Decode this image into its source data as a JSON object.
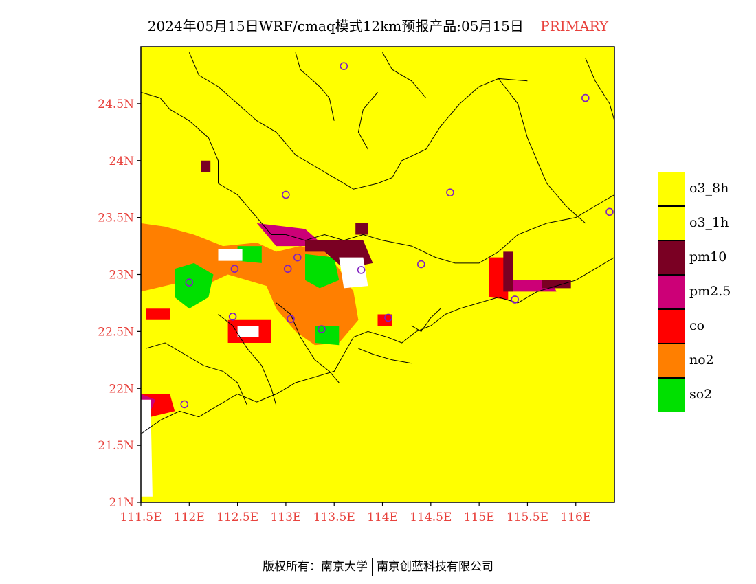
{
  "header": {
    "title": "2024年05月15日WRF/cmaq模式12km预报产品:05月15日",
    "tag": "PRIMARY"
  },
  "map": {
    "lat_ticks": [
      {
        "value": 24.5,
        "label": "24.5N"
      },
      {
        "value": 24.0,
        "label": "24N"
      },
      {
        "value": 23.5,
        "label": "23.5N"
      },
      {
        "value": 23.0,
        "label": "23N"
      },
      {
        "value": 22.5,
        "label": "22.5N"
      },
      {
        "value": 22.0,
        "label": "22N"
      },
      {
        "value": 21.5,
        "label": "21.5N"
      },
      {
        "value": 21.0,
        "label": "21N"
      }
    ],
    "lon_ticks": [
      {
        "value": 111.5,
        "label": "111.5E"
      },
      {
        "value": 112.0,
        "label": "112E"
      },
      {
        "value": 112.5,
        "label": "112.5E"
      },
      {
        "value": 113.0,
        "label": "113E"
      },
      {
        "value": 113.5,
        "label": "113.5E"
      },
      {
        "value": 114.0,
        "label": "114E"
      },
      {
        "value": 114.5,
        "label": "114.5E"
      },
      {
        "value": 115.0,
        "label": "115E"
      },
      {
        "value": 115.5,
        "label": "115.5E"
      },
      {
        "value": 116.0,
        "label": "116E"
      }
    ],
    "extent": {
      "lon_min": 111.5,
      "lon_max": 116.4,
      "lat_min": 21.0,
      "lat_max": 25.0
    },
    "background_pollutant": "o3_8h",
    "city_markers": [
      {
        "lon": 113.6,
        "lat": 24.83
      },
      {
        "lon": 116.1,
        "lat": 24.55
      },
      {
        "lon": 113.0,
        "lat": 23.7
      },
      {
        "lon": 114.7,
        "lat": 23.72
      },
      {
        "lon": 116.35,
        "lat": 23.55
      },
      {
        "lon": 112.47,
        "lat": 23.05
      },
      {
        "lon": 113.02,
        "lat": 23.05
      },
      {
        "lon": 113.12,
        "lat": 23.15
      },
      {
        "lon": 113.78,
        "lat": 23.04
      },
      {
        "lon": 114.4,
        "lat": 23.09
      },
      {
        "lon": 112.0,
        "lat": 22.93
      },
      {
        "lon": 113.05,
        "lat": 22.61
      },
      {
        "lon": 113.37,
        "lat": 22.52
      },
      {
        "lon": 114.06,
        "lat": 22.62
      },
      {
        "lon": 115.37,
        "lat": 22.78
      },
      {
        "lon": 111.95,
        "lat": 21.86
      },
      {
        "lon": 112.45,
        "lat": 22.63
      }
    ],
    "regions": [
      {
        "pollutant": "no2",
        "polygon": [
          [
            111.5,
            23.45
          ],
          [
            111.75,
            23.42
          ],
          [
            112.05,
            23.35
          ],
          [
            112.35,
            23.25
          ],
          [
            112.7,
            23.28
          ],
          [
            112.9,
            23.2
          ],
          [
            113.15,
            23.25
          ],
          [
            113.4,
            23.2
          ],
          [
            113.55,
            23.05
          ],
          [
            113.7,
            22.85
          ],
          [
            113.75,
            22.6
          ],
          [
            113.55,
            22.4
          ],
          [
            113.3,
            22.38
          ],
          [
            113.1,
            22.5
          ],
          [
            112.9,
            22.7
          ],
          [
            112.8,
            22.9
          ],
          [
            112.6,
            22.95
          ],
          [
            112.4,
            23.0
          ],
          [
            112.2,
            22.92
          ],
          [
            112.0,
            22.95
          ],
          [
            111.75,
            22.9
          ],
          [
            111.5,
            22.85
          ]
        ]
      },
      {
        "pollutant": "so2",
        "polygon": [
          [
            111.85,
            23.05
          ],
          [
            112.05,
            23.1
          ],
          [
            112.25,
            23.0
          ],
          [
            112.2,
            22.8
          ],
          [
            112.0,
            22.7
          ],
          [
            111.85,
            22.8
          ]
        ]
      },
      {
        "pollutant": "so2",
        "polygon": [
          [
            112.5,
            23.25
          ],
          [
            112.75,
            23.25
          ],
          [
            112.75,
            23.1
          ],
          [
            112.5,
            23.12
          ]
        ]
      },
      {
        "pollutant": "so2",
        "polygon": [
          [
            113.2,
            23.18
          ],
          [
            113.5,
            23.15
          ],
          [
            113.55,
            22.95
          ],
          [
            113.35,
            22.88
          ],
          [
            113.2,
            22.95
          ]
        ]
      },
      {
        "pollutant": "so2",
        "polygon": [
          [
            113.3,
            22.55
          ],
          [
            113.55,
            22.55
          ],
          [
            113.55,
            22.38
          ],
          [
            113.3,
            22.4
          ]
        ]
      },
      {
        "pollutant": "so2",
        "polygon": [
          [
            111.5,
            21.55
          ],
          [
            111.6,
            21.55
          ],
          [
            111.6,
            21.5
          ],
          [
            111.5,
            21.5
          ]
        ]
      },
      {
        "pollutant": "co",
        "polygon": [
          [
            112.4,
            22.6
          ],
          [
            112.85,
            22.6
          ],
          [
            112.85,
            22.4
          ],
          [
            112.4,
            22.4
          ]
        ]
      },
      {
        "pollutant": "co",
        "polygon": [
          [
            111.55,
            22.7
          ],
          [
            111.8,
            22.7
          ],
          [
            111.8,
            22.6
          ],
          [
            111.55,
            22.6
          ]
        ]
      },
      {
        "pollutant": "co",
        "polygon": [
          [
            115.1,
            23.15
          ],
          [
            115.3,
            23.15
          ],
          [
            115.3,
            22.78
          ],
          [
            115.1,
            22.8
          ]
        ]
      },
      {
        "pollutant": "co",
        "polygon": [
          [
            111.5,
            21.95
          ],
          [
            111.8,
            21.95
          ],
          [
            111.85,
            21.8
          ],
          [
            111.6,
            21.75
          ],
          [
            111.5,
            21.8
          ]
        ]
      },
      {
        "pollutant": "co",
        "polygon": [
          [
            113.95,
            22.65
          ],
          [
            114.1,
            22.65
          ],
          [
            114.1,
            22.55
          ],
          [
            113.95,
            22.55
          ]
        ]
      },
      {
        "pollutant": "pm2.5",
        "polygon": [
          [
            112.7,
            23.45
          ],
          [
            113.2,
            23.4
          ],
          [
            113.4,
            23.25
          ],
          [
            112.9,
            23.25
          ]
        ]
      },
      {
        "pollutant": "pm2.5",
        "polygon": [
          [
            115.25,
            22.95
          ],
          [
            115.75,
            22.95
          ],
          [
            115.8,
            22.85
          ],
          [
            115.3,
            22.85
          ]
        ]
      },
      {
        "pollutant": "pm2.5",
        "polygon": [
          [
            111.5,
            21.95
          ],
          [
            111.65,
            21.9
          ],
          [
            111.6,
            21.8
          ],
          [
            111.5,
            21.85
          ]
        ]
      },
      {
        "pollutant": "pm10",
        "polygon": [
          [
            113.2,
            23.3
          ],
          [
            113.8,
            23.3
          ],
          [
            113.9,
            23.1
          ],
          [
            113.6,
            23.05
          ],
          [
            113.4,
            23.2
          ],
          [
            113.2,
            23.2
          ]
        ]
      },
      {
        "pollutant": "pm10",
        "polygon": [
          [
            115.25,
            23.2
          ],
          [
            115.35,
            23.2
          ],
          [
            115.35,
            22.85
          ],
          [
            115.25,
            22.85
          ]
        ]
      },
      {
        "pollutant": "pm10",
        "polygon": [
          [
            115.65,
            22.95
          ],
          [
            115.95,
            22.95
          ],
          [
            115.95,
            22.88
          ],
          [
            115.65,
            22.88
          ]
        ]
      },
      {
        "pollutant": "pm10",
        "polygon": [
          [
            112.12,
            24.0
          ],
          [
            112.22,
            24.0
          ],
          [
            112.22,
            23.9
          ],
          [
            112.12,
            23.9
          ]
        ]
      },
      {
        "pollutant": "pm10",
        "polygon": [
          [
            113.72,
            23.45
          ],
          [
            113.85,
            23.45
          ],
          [
            113.85,
            23.35
          ],
          [
            113.72,
            23.35
          ]
        ]
      },
      {
        "pollutant": "none",
        "polygon": [
          [
            113.55,
            23.15
          ],
          [
            113.8,
            23.15
          ],
          [
            113.85,
            22.9
          ],
          [
            113.6,
            22.88
          ]
        ]
      },
      {
        "pollutant": "none",
        "polygon": [
          [
            112.5,
            22.55
          ],
          [
            112.72,
            22.55
          ],
          [
            112.72,
            22.45
          ],
          [
            112.5,
            22.45
          ]
        ]
      },
      {
        "pollutant": "none",
        "polygon": [
          [
            111.5,
            21.9
          ],
          [
            111.6,
            21.9
          ],
          [
            111.62,
            21.05
          ],
          [
            111.5,
            21.05
          ]
        ]
      },
      {
        "pollutant": "none",
        "polygon": [
          [
            112.3,
            23.22
          ],
          [
            112.55,
            23.22
          ],
          [
            112.55,
            23.12
          ],
          [
            112.3,
            23.12
          ]
        ]
      }
    ],
    "boundary_lines": [
      [
        [
          111.5,
          24.6
        ],
        [
          111.7,
          24.55
        ],
        [
          111.8,
          24.45
        ],
        [
          112.0,
          24.35
        ],
        [
          112.2,
          24.2
        ],
        [
          112.3,
          24.0
        ],
        [
          112.3,
          23.8
        ],
        [
          112.5,
          23.7
        ],
        [
          112.7,
          23.5
        ],
        [
          112.85,
          23.35
        ],
        [
          113.0,
          23.35
        ]
      ],
      [
        [
          112.0,
          24.95
        ],
        [
          112.1,
          24.75
        ],
        [
          112.3,
          24.65
        ],
        [
          112.5,
          24.5
        ],
        [
          112.7,
          24.35
        ],
        [
          112.9,
          24.25
        ],
        [
          113.1,
          24.05
        ],
        [
          113.3,
          23.95
        ],
        [
          113.5,
          23.85
        ],
        [
          113.7,
          23.75
        ],
        [
          113.95,
          23.8
        ],
        [
          114.1,
          23.85
        ],
        [
          114.2,
          24.0
        ],
        [
          114.45,
          24.1
        ],
        [
          114.6,
          24.3
        ],
        [
          114.8,
          24.5
        ],
        [
          115.0,
          24.65
        ],
        [
          115.2,
          24.72
        ],
        [
          115.5,
          24.7
        ]
      ],
      [
        [
          113.1,
          24.95
        ],
        [
          113.15,
          24.8
        ],
        [
          113.35,
          24.65
        ],
        [
          113.45,
          24.55
        ],
        [
          113.5,
          24.35
        ]
      ],
      [
        [
          114.0,
          24.95
        ],
        [
          114.1,
          24.8
        ],
        [
          114.3,
          24.7
        ],
        [
          114.45,
          24.55
        ]
      ],
      [
        [
          113.0,
          23.35
        ],
        [
          113.2,
          23.3
        ],
        [
          113.4,
          23.35
        ],
        [
          113.6,
          23.3
        ],
        [
          113.8,
          23.35
        ],
        [
          114.0,
          23.3
        ],
        [
          114.3,
          23.25
        ],
        [
          114.55,
          23.15
        ],
        [
          114.75,
          23.1
        ],
        [
          115.0,
          23.1
        ],
        [
          115.2,
          23.2
        ],
        [
          115.4,
          23.35
        ],
        [
          115.7,
          23.45
        ],
        [
          116.0,
          23.5
        ],
        [
          116.2,
          23.6
        ],
        [
          116.4,
          23.7
        ]
      ],
      [
        [
          115.2,
          24.72
        ],
        [
          115.4,
          24.5
        ],
        [
          115.5,
          24.2
        ],
        [
          115.6,
          24.0
        ],
        [
          115.7,
          23.8
        ],
        [
          115.9,
          23.6
        ],
        [
          116.1,
          23.45
        ]
      ],
      [
        [
          116.1,
          24.9
        ],
        [
          116.2,
          24.7
        ],
        [
          116.35,
          24.5
        ],
        [
          116.4,
          24.35
        ]
      ],
      [
        [
          112.9,
          22.75
        ],
        [
          113.05,
          22.65
        ],
        [
          113.15,
          22.45
        ],
        [
          113.3,
          22.25
        ],
        [
          113.45,
          22.15
        ],
        [
          113.55,
          22.05
        ]
      ],
      [
        [
          111.55,
          22.35
        ],
        [
          111.75,
          22.4
        ],
        [
          111.95,
          22.3
        ],
        [
          112.15,
          22.2
        ],
        [
          112.35,
          22.15
        ],
        [
          112.5,
          22.05
        ],
        [
          112.6,
          21.85
        ]
      ],
      [
        [
          112.3,
          22.65
        ],
        [
          112.45,
          22.55
        ],
        [
          112.6,
          22.35
        ],
        [
          112.75,
          22.2
        ],
        [
          112.85,
          22.0
        ],
        [
          112.9,
          21.85
        ]
      ],
      [
        [
          113.75,
          22.35
        ],
        [
          113.9,
          22.3
        ],
        [
          114.1,
          22.25
        ],
        [
          114.3,
          22.22
        ]
      ],
      [
        [
          114.3,
          22.55
        ],
        [
          114.4,
          22.5
        ],
        [
          114.5,
          22.62
        ],
        [
          114.6,
          22.7
        ]
      ],
      [
        [
          113.95,
          24.6
        ],
        [
          113.8,
          24.45
        ],
        [
          113.75,
          24.25
        ],
        [
          113.85,
          24.1
        ]
      ]
    ],
    "coastline": [
      [
        111.5,
        21.6
      ],
      [
        111.7,
        21.72
      ],
      [
        111.9,
        21.8
      ],
      [
        112.1,
        21.75
      ],
      [
        112.3,
        21.85
      ],
      [
        112.5,
        21.95
      ],
      [
        112.7,
        21.88
      ],
      [
        112.9,
        21.95
      ],
      [
        113.1,
        22.05
      ],
      [
        113.3,
        22.1
      ],
      [
        113.5,
        22.15
      ],
      [
        113.6,
        22.3
      ],
      [
        113.7,
        22.45
      ],
      [
        113.85,
        22.5
      ],
      [
        114.05,
        22.45
      ],
      [
        114.2,
        22.4
      ],
      [
        114.35,
        22.5
      ],
      [
        114.5,
        22.55
      ],
      [
        114.65,
        22.65
      ],
      [
        114.8,
        22.7
      ],
      [
        115.0,
        22.75
      ],
      [
        115.2,
        22.8
      ],
      [
        115.4,
        22.75
      ],
      [
        115.6,
        22.85
      ],
      [
        115.8,
        22.9
      ],
      [
        116.0,
        22.95
      ],
      [
        116.2,
        23.05
      ],
      [
        116.4,
        23.15
      ]
    ]
  },
  "legend": {
    "items": [
      {
        "label": "o3_8h",
        "color": "#ffff00"
      },
      {
        "label": "o3_1h",
        "color": "#ffff00"
      },
      {
        "label": "pm10",
        "color": "#7a0023"
      },
      {
        "label": "pm2.5",
        "color": "#cc0077"
      },
      {
        "label": "co",
        "color": "#ff0000"
      },
      {
        "label": "no2",
        "color": "#ff7f00"
      },
      {
        "label": "so2",
        "color": "#00e000"
      }
    ]
  },
  "colors": {
    "none": "#ffffff",
    "axis_label": "#e8413c",
    "marker": "#8020c0"
  },
  "footer": {
    "left": "版权所有：南京大学",
    "right": "南京创蓝科技有限公司"
  }
}
